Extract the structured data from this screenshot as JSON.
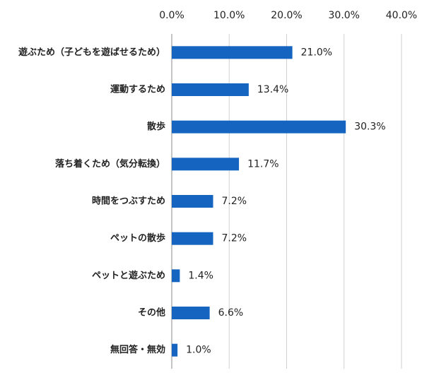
{
  "chart_data": {
    "type": "hbar",
    "categories": [
      "遊ぶため（子どもを遊ばせるため）",
      "運動するため",
      "散歩",
      "落ち着くため（気分転換）",
      "時間をつぶすため",
      "ペットの散歩",
      "ペットと遊ぶため",
      "その他",
      "無回答・無効"
    ],
    "values": [
      21.0,
      13.4,
      30.3,
      11.7,
      7.2,
      7.2,
      1.4,
      6.6,
      1.0
    ],
    "value_labels": [
      "21.0%",
      "13.4%",
      "30.3%",
      "11.7%",
      "7.2%",
      "7.2%",
      "1.4%",
      "6.6%",
      "1.0%"
    ],
    "color": "#1565c0",
    "xlim": [
      0,
      40
    ],
    "xticks": [
      {
        "value": 0,
        "label": "0.0%"
      },
      {
        "value": 10,
        "label": "10.0%"
      },
      {
        "value": 20,
        "label": "20.0%"
      },
      {
        "value": 30,
        "label": "30.0%"
      },
      {
        "value": 40,
        "label": "40.0%"
      }
    ],
    "grid": true
  }
}
